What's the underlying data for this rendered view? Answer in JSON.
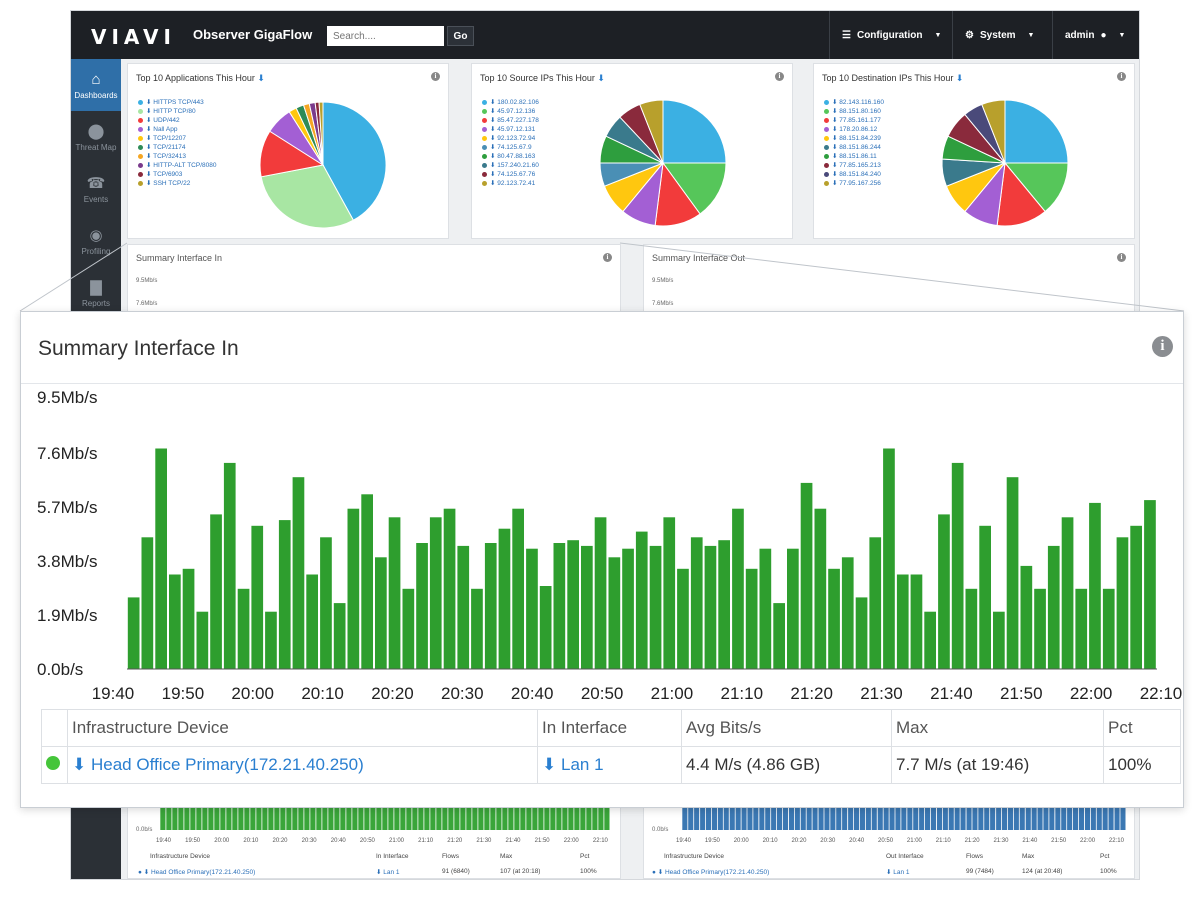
{
  "topbar": {
    "logo": "VIAVI",
    "app_title": "Observer GigaFlow",
    "search_placeholder": "Search....",
    "go_label": "Go",
    "nav": [
      {
        "label": "Configuration",
        "icon": "sliders-icon"
      },
      {
        "label": "System",
        "icon": "gear-icon"
      },
      {
        "label": "admin",
        "icon": "user-icon"
      }
    ]
  },
  "sidebar": {
    "items": [
      {
        "label": "Dashboards",
        "icon": "home-icon",
        "active": true
      },
      {
        "label": "Threat Map",
        "icon": "map-pin-icon",
        "active": false
      },
      {
        "label": "Events",
        "icon": "alarm-icon",
        "active": false
      },
      {
        "label": "Profiling",
        "icon": "eye-icon",
        "active": false
      },
      {
        "label": "Reports",
        "icon": "bar-chart-icon",
        "active": false
      }
    ]
  },
  "pies": [
    {
      "title": "Top 10 Applications This Hour",
      "legend": [
        "HITTPS TCP/443",
        "HITTP TCP/80",
        "UDP/442",
        "Nall App",
        "TCP/12207",
        "TCP/21174",
        "TCP/32413",
        "HITTP-ALT TCP/8080",
        "TCP/6903",
        "SSH TCP/22"
      ],
      "colors": [
        "#3bb0e3",
        "#a8e6a3",
        "#f23b3b",
        "#a35fd4",
        "#ffc70f",
        "#2e8b57",
        "#f5a623",
        "#7a3b8c",
        "#8a2a3c",
        "#b8a02c"
      ],
      "values": [
        42,
        30,
        12,
        7,
        2,
        2,
        1.5,
        1.5,
        1,
        1
      ]
    },
    {
      "title": "Top 10 Source IPs This Hour",
      "legend": [
        "180.02.82.106",
        "45.97.12.136",
        "85.47.227.178",
        "45.97.12.131",
        "92.123.72.94",
        "74.125.67.9",
        "80.47.88.163",
        "157.240.21.60",
        "74.125.67.76",
        "92.123.72.41"
      ],
      "colors": [
        "#3bb0e3",
        "#56c65a",
        "#f23b3b",
        "#a35fd4",
        "#ffc70f",
        "#4a8fb5",
        "#2e9e3e",
        "#3a7a8c",
        "#8a2a3c",
        "#b8a02c"
      ],
      "values": [
        25,
        15,
        12,
        9,
        8,
        6,
        7,
        6,
        6,
        6
      ]
    },
    {
      "title": "Top 10 Destination IPs This Hour",
      "legend": [
        "82.143.116.160",
        "88.151.80.160",
        "77.85.161.177",
        "178.20.86.12",
        "88.151.84.239",
        "88.151.86.244",
        "88.151.86.11",
        "77.85.165.213",
        "88.151.84.240",
        "77.95.167.256"
      ],
      "colors": [
        "#3bb0e3",
        "#56c65a",
        "#f23b3b",
        "#a35fd4",
        "#ffc70f",
        "#3a7a8c",
        "#2e9e3e",
        "#8a2a3c",
        "#4a4a7a",
        "#b8a02c"
      ],
      "values": [
        25,
        14,
        13,
        9,
        8,
        7,
        6,
        7,
        5,
        6
      ]
    }
  ],
  "mini": {
    "in_title": "Summary Interface In",
    "out_title": "Summary Interface Out",
    "y_top": "9.5Mb/s",
    "y_mid": "7.6Mb/s",
    "y_zero": "0.0b/s",
    "ticks": [
      "19:40",
      "19:50",
      "20:00",
      "20:10",
      "20:20",
      "20:30",
      "20:40",
      "20:50",
      "21:00",
      "21:10",
      "21:20",
      "21:30",
      "21:40",
      "21:50",
      "22:00",
      "22:10"
    ],
    "in_table": {
      "headers": [
        "Infrastructure Device",
        "In Interface",
        "Flows",
        "Max",
        "Pct"
      ],
      "row": [
        "Head Office Primary(172.21.40.250)",
        "Lan 1",
        "91 (6840)",
        "107 (at 20:18)",
        "100%"
      ]
    },
    "out_table": {
      "headers": [
        "Infrastructure Device",
        "Out Interface",
        "Flows",
        "Max",
        "Pct"
      ],
      "row": [
        "Head Office Primary(172.21.40.250)",
        "Lan 1",
        "99 (7484)",
        "124 (at 20:48)",
        "100%"
      ]
    }
  },
  "overlay": {
    "title": "Summary Interface In",
    "table": {
      "headers": [
        "Infrastructure Device",
        "In Interface",
        "Avg Bits/s",
        "Max",
        "Pct"
      ],
      "row": {
        "device": "Head Office Primary(172.21.40.250)",
        "interface": "Lan 1",
        "avg": "4.4 M/s (4.86 GB)",
        "max": "7.7 M/s (at 19:46)",
        "pct": "100%"
      }
    }
  },
  "chart_data": {
    "type": "bar",
    "title": "Summary Interface In",
    "ylabel": "",
    "xlabel": "",
    "y_tick_labels": [
      "0.0b/s",
      "1.9Mb/s",
      "3.8Mb/s",
      "5.7Mb/s",
      "7.6Mb/s",
      "9.5Mb/s"
    ],
    "ylim": [
      0,
      9.5
    ],
    "x_tick_labels": [
      "19:40",
      "19:50",
      "20:00",
      "20:10",
      "20:20",
      "20:30",
      "20:40",
      "20:50",
      "21:00",
      "21:10",
      "21:20",
      "21:30",
      "21:40",
      "21:50",
      "22:00",
      "22:10"
    ],
    "unit": "Mb/s",
    "color": "#2e9e2e",
    "grid": false,
    "values": [
      2.5,
      4.6,
      7.7,
      3.3,
      3.5,
      2.0,
      5.4,
      7.2,
      2.8,
      5.0,
      2.0,
      5.2,
      6.7,
      3.3,
      4.6,
      2.3,
      5.6,
      6.1,
      3.9,
      5.3,
      2.8,
      4.4,
      5.3,
      5.6,
      4.3,
      2.8,
      4.4,
      4.9,
      5.6,
      4.2,
      2.9,
      4.4,
      4.5,
      4.3,
      5.3,
      3.9,
      4.2,
      4.8,
      4.3,
      5.3,
      3.5,
      4.6,
      4.3,
      4.5,
      5.6,
      3.5,
      4.2,
      2.3,
      4.2,
      6.5,
      5.6,
      3.5,
      3.9,
      2.5,
      4.6,
      7.7,
      3.3,
      3.3,
      2.0,
      5.4,
      7.2,
      2.8,
      5.0,
      2.0,
      6.7,
      3.6,
      2.8,
      4.3,
      5.3,
      2.8,
      5.8,
      2.8,
      4.6,
      5.0,
      5.9
    ]
  }
}
